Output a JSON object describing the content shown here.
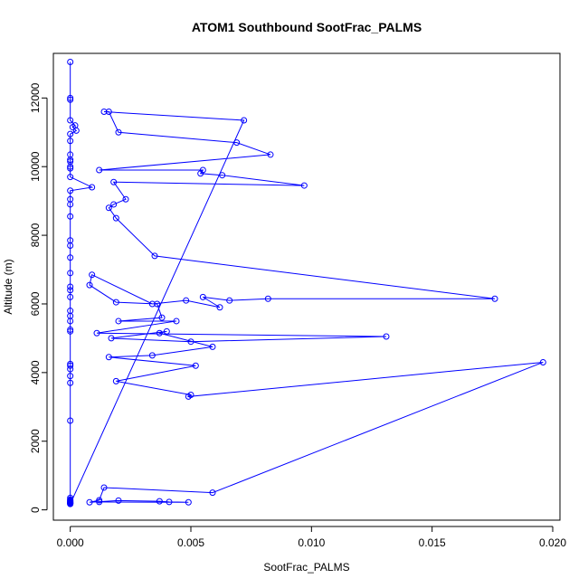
{
  "chart_data": {
    "type": "line",
    "title": "ATOM1 Southbound SootFrac_PALMS",
    "xlabel": "SootFrac_PALMS",
    "ylabel": "Altitude (m)",
    "xlim": [
      -0.0007,
      0.0203
    ],
    "ylim": [
      -300,
      13300
    ],
    "xticks": [
      0.0,
      0.005,
      0.01,
      0.015,
      0.02
    ],
    "xtick_labels": [
      "0.000",
      "0.005",
      "0.010",
      "0.015",
      "0.020"
    ],
    "yticks": [
      0,
      2000,
      4000,
      6000,
      8000,
      10000,
      12000
    ],
    "ytick_labels": [
      "0",
      "2000",
      "4000",
      "6000",
      "8000",
      "10000",
      "12000"
    ],
    "grid": false,
    "colors": {
      "series": "#0000ff"
    },
    "series": [
      {
        "x": [
          0.0,
          0.0,
          0.0,
          0.0,
          0.0002,
          0.0001,
          0.00025,
          0.0,
          0.0,
          0.0,
          0.0,
          0.0,
          0.0,
          0.0,
          0.0,
          0.0009,
          0.0,
          0.0,
          0.0,
          0.0,
          0.0,
          0.0,
          0.0,
          0.0,
          0.0,
          0.0,
          0.0,
          0.0,
          0.0,
          0.0,
          0.0,
          0.0,
          0.0,
          0.0,
          0.0,
          0.0,
          0.0,
          0.0,
          0.0,
          0.0,
          0.0,
          0.0,
          0.0,
          0.0,
          0.0,
          0.0,
          0.0,
          0.0,
          0.0,
          0.0072,
          0.0014,
          0.0016,
          0.002,
          0.0069,
          0.0083,
          0.0012,
          0.0055,
          0.0054,
          0.0063,
          0.0097,
          0.0018,
          0.0023,
          0.0018,
          0.0016,
          0.0019,
          0.0035,
          0.0176,
          0.0082,
          0.0066,
          0.0055,
          0.0062,
          0.0048,
          0.0034,
          0.0009,
          0.0008,
          0.0019,
          0.0036,
          0.0038,
          0.002,
          0.0044,
          0.0011,
          0.0131,
          0.005,
          0.0017,
          0.004,
          0.0037,
          0.0059,
          0.0034,
          0.0016,
          0.0052,
          0.0019,
          0.005,
          0.0049,
          0.0196,
          0.0059,
          0.0014,
          0.0012,
          0.0008,
          0.002,
          0.0037,
          0.0041,
          0.0049,
          0.0012
        ],
        "y": [
          13050,
          12000,
          11950,
          11350,
          11200,
          11150,
          11050,
          10950,
          10750,
          10350,
          10200,
          10150,
          10000,
          9950,
          9700,
          9400,
          9300,
          9050,
          8900,
          8550,
          7850,
          7700,
          7350,
          6900,
          6500,
          6400,
          6200,
          5800,
          5650,
          5500,
          5250,
          5200,
          4250,
          4200,
          4100,
          3900,
          3700,
          2600,
          350,
          300,
          280,
          260,
          240,
          220,
          210,
          200,
          190,
          180,
          170,
          11350,
          11600,
          11600,
          11000,
          10700,
          10350,
          9900,
          9900,
          9800,
          9750,
          9450,
          9550,
          9050,
          8900,
          8800,
          8500,
          7400,
          6150,
          6150,
          6100,
          6200,
          5900,
          6100,
          6000,
          6850,
          6550,
          6050,
          6000,
          5600,
          5500,
          5500,
          5150,
          5050,
          4900,
          5000,
          5200,
          5150,
          4750,
          4500,
          4450,
          4200,
          3750,
          3350,
          3300,
          4300,
          500,
          650,
          280,
          220,
          270,
          250,
          230,
          220,
          230
        ]
      }
    ]
  }
}
